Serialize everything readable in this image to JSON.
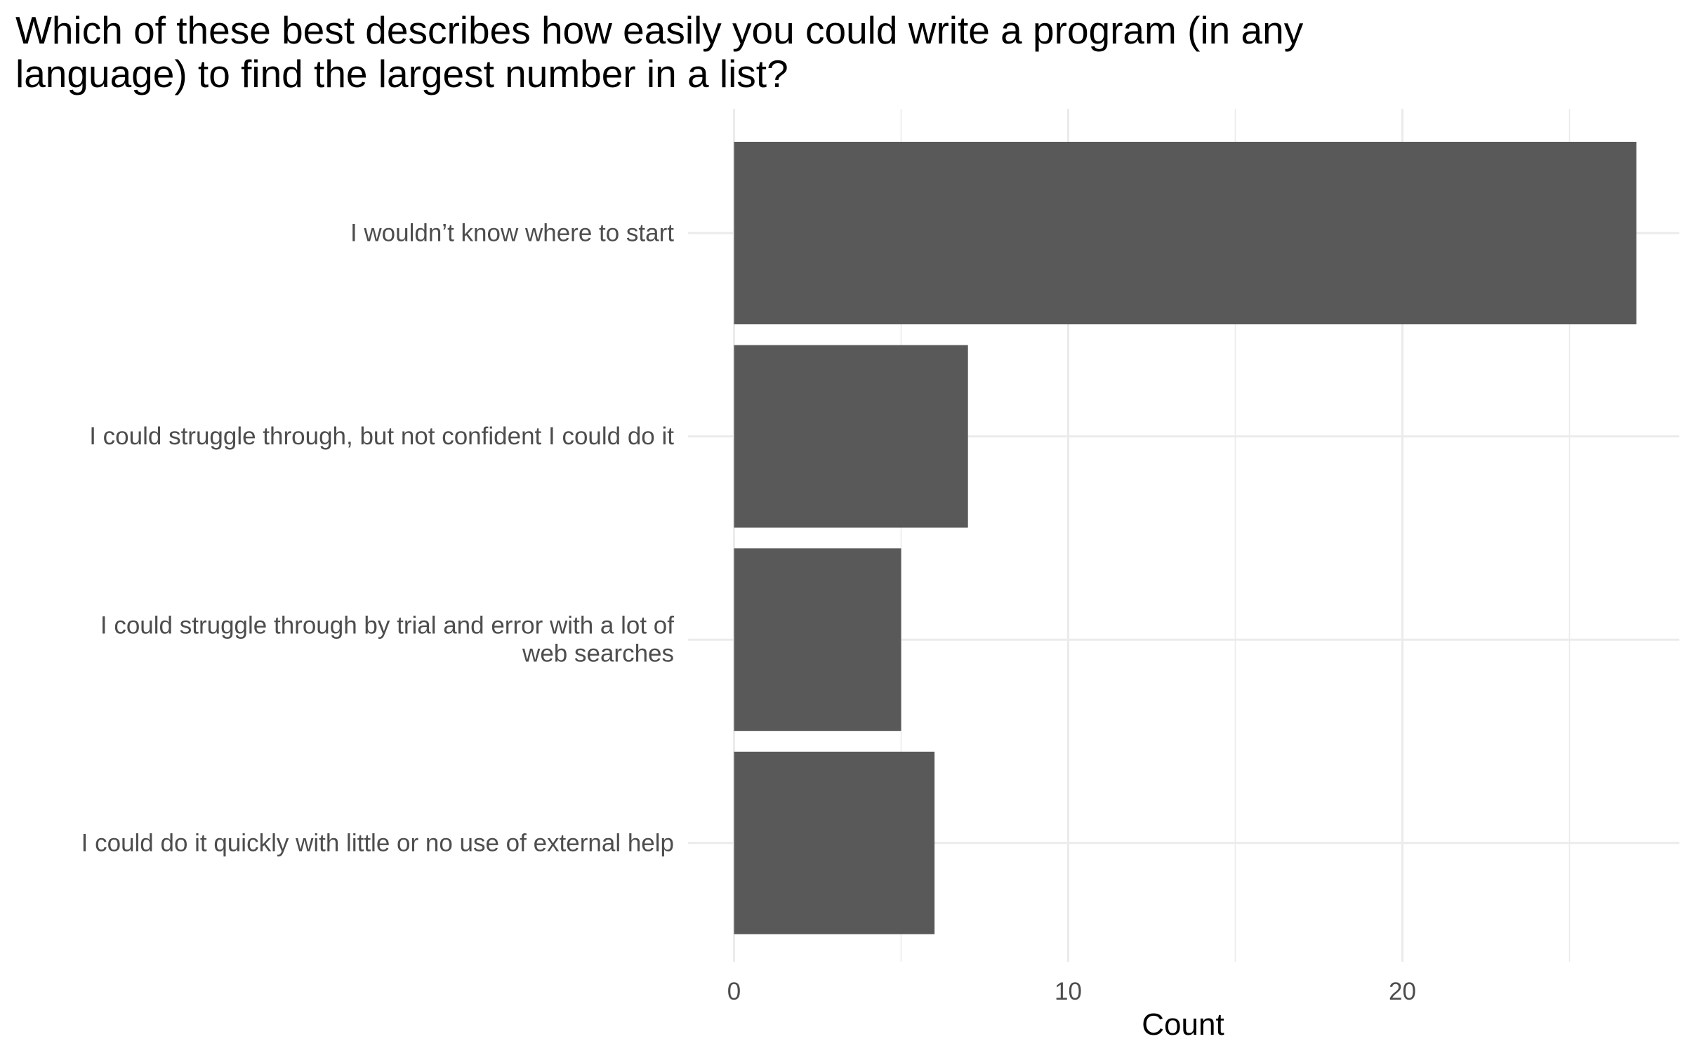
{
  "chart_data": {
    "type": "bar",
    "orientation": "horizontal",
    "title": [
      "Which of these best describes how easily you could write a program (in any",
      "language) to find the largest number in a list?"
    ],
    "categories": [
      [
        "I wouldn’t know where to start"
      ],
      [
        "I could struggle through, but not confident I could do it"
      ],
      [
        "I could struggle through by trial and error with a lot of",
        "web searches"
      ],
      [
        "I could do it quickly with little or no use of external help"
      ]
    ],
    "values": [
      27,
      7,
      5,
      6
    ],
    "xlabel": "Count",
    "ylabel": "",
    "xlim": [
      0,
      28.35
    ],
    "x_ticks": [
      0,
      10,
      20
    ],
    "grid": true,
    "bar_color": "#595959",
    "grid_color": "#ebebeb"
  }
}
